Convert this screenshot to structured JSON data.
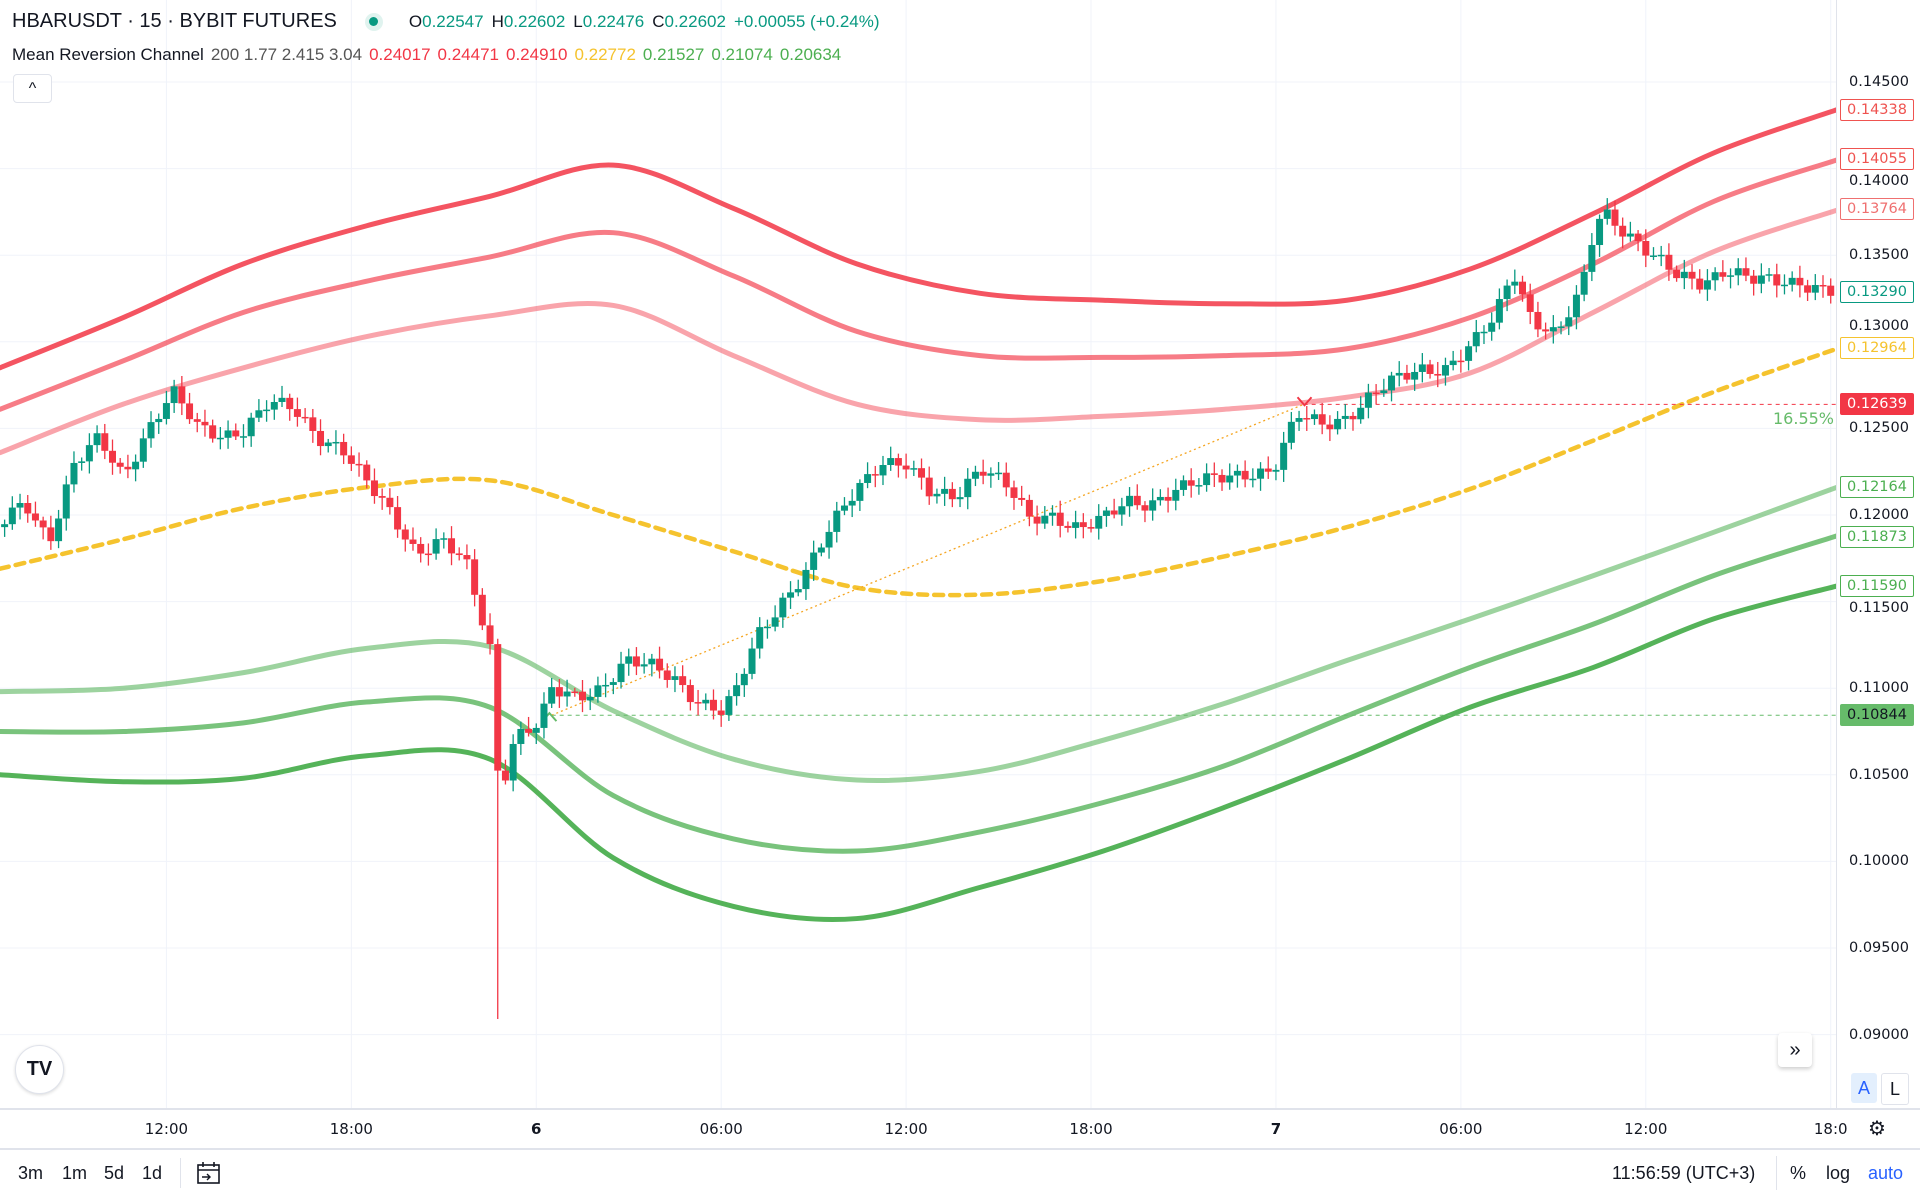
{
  "header": {
    "symbol": "HBARUSDT · 15 · BYBIT FUTURES",
    "ohlc": {
      "o_label": "O",
      "o": "0.22547",
      "h_label": "H",
      "h": "0.22602",
      "l_label": "L",
      "l": "0.22476",
      "c_label": "C",
      "c": "0.22602",
      "change": "+0.00055 (+0.24%)"
    },
    "indicator": {
      "name": "Mean Reversion Channel",
      "params": "200 1.77 2.415 3.04",
      "values": [
        {
          "v": "0.24017",
          "color": "#f23645"
        },
        {
          "v": "0.24471",
          "color": "#f23645"
        },
        {
          "v": "0.24910",
          "color": "#f23645"
        },
        {
          "v": "0.22772",
          "color": "#f5c32e"
        },
        {
          "v": "0.21527",
          "color": "#4caf50"
        },
        {
          "v": "0.21074",
          "color": "#4caf50"
        },
        {
          "v": "0.20634",
          "color": "#4caf50"
        }
      ]
    },
    "collapse_icon": "chevron-up-icon",
    "collapse_glyph": "^"
  },
  "price_axis": {
    "ticks": [
      "0.14500",
      "0.14000",
      "0.13500",
      "0.13000",
      "0.12500",
      "0.12000",
      "0.11500",
      "0.11000",
      "0.10500",
      "0.10000",
      "0.09500",
      "0.09000"
    ],
    "tick_values": [
      0.145,
      0.14,
      0.135,
      0.13,
      0.125,
      0.12,
      0.115,
      0.11,
      0.105,
      0.1,
      0.095,
      0.09
    ],
    "labels": [
      {
        "text": "0.14338",
        "value": 0.14338,
        "color": "#ef5350",
        "style": "outline"
      },
      {
        "text": "0.14055",
        "value": 0.14055,
        "color": "#ef5350",
        "style": "outline"
      },
      {
        "text": "0.13764",
        "value": 0.13764,
        "color": "#ef7070",
        "style": "outline"
      },
      {
        "text": "0.13290",
        "value": 0.1329,
        "color": "#089981",
        "style": "outline"
      },
      {
        "text": "0.12964",
        "value": 0.12964,
        "color": "#f5c32e",
        "style": "outline"
      },
      {
        "text": "0.12639",
        "value": 0.12639,
        "color": "#f23645",
        "style": "solid"
      },
      {
        "text": "0.12164",
        "value": 0.12164,
        "color": "#4caf50",
        "style": "outline"
      },
      {
        "text": "0.11873",
        "value": 0.11873,
        "color": "#4caf50",
        "style": "outline"
      },
      {
        "text": "0.11590",
        "value": 0.1159,
        "color": "#4caf50",
        "style": "outline"
      },
      {
        "text": "0.10844",
        "value": 0.10844,
        "color": "#66bb6a",
        "style": "solid"
      }
    ]
  },
  "time_axis": {
    "ticks": [
      {
        "label": "12:00",
        "hour": 12
      },
      {
        "label": "18:00",
        "hour": 18
      },
      {
        "label": "6",
        "hour": 24
      },
      {
        "label": "06:00",
        "hour": 30
      },
      {
        "label": "12:00",
        "hour": 36
      },
      {
        "label": "18:00",
        "hour": 42
      },
      {
        "label": "7",
        "hour": 48
      },
      {
        "label": "06:00",
        "hour": 54
      },
      {
        "label": "12:00",
        "hour": 60
      },
      {
        "label": "18:0",
        "hour": 66
      }
    ]
  },
  "annotation": {
    "percent": "16.55%"
  },
  "bottom_bar": {
    "ranges": [
      "3m",
      "1m",
      "5d",
      "1d"
    ],
    "clock": "11:56:59 (UTC+3)",
    "percent": "%",
    "log": "log",
    "auto": "auto"
  },
  "chart_controls": {
    "auto_scale": "A",
    "lock": "L",
    "logo": "TV"
  },
  "colors": {
    "up": "#089981",
    "down": "#f23645",
    "yellow": "#f5c32e"
  },
  "chart_data": {
    "type": "candlestick",
    "x_unit": "hours since day 5 00:00 (15-minute candles)",
    "closes": [
      [
        6.6,
        0.1193
      ],
      [
        7.4,
        0.1207
      ],
      [
        8.2,
        0.1186
      ],
      [
        9.0,
        0.1229
      ],
      [
        9.8,
        0.1243
      ],
      [
        10.6,
        0.1222
      ],
      [
        11.4,
        0.125
      ],
      [
        12.2,
        0.1271
      ],
      [
        13.0,
        0.125
      ],
      [
        13.8,
        0.1246
      ],
      [
        14.5,
        0.125
      ],
      [
        15.3,
        0.1264
      ],
      [
        16.1,
        0.1261
      ],
      [
        16.9,
        0.1246
      ],
      [
        17.7,
        0.1239
      ],
      [
        18.5,
        0.1218
      ],
      [
        19.3,
        0.12
      ],
      [
        20.1,
        0.1179
      ],
      [
        20.9,
        0.1186
      ],
      [
        21.7,
        0.1172
      ],
      [
        22.5,
        0.1123
      ],
      [
        22.8,
        0.1038
      ],
      [
        23.3,
        0.1073
      ],
      [
        24.1,
        0.108
      ],
      [
        24.5,
        0.1098
      ],
      [
        25.3,
        0.1094
      ],
      [
        26.1,
        0.1101
      ],
      [
        26.9,
        0.1116
      ],
      [
        27.7,
        0.1112
      ],
      [
        28.5,
        0.1105
      ],
      [
        29.2,
        0.1094
      ],
      [
        30.0,
        0.1087
      ],
      [
        30.4,
        0.1094
      ],
      [
        31.2,
        0.113
      ],
      [
        32.0,
        0.1151
      ],
      [
        32.8,
        0.1169
      ],
      [
        33.6,
        0.1193
      ],
      [
        34.4,
        0.1215
      ],
      [
        35.2,
        0.1232
      ],
      [
        36.0,
        0.1229
      ],
      [
        36.8,
        0.1211
      ],
      [
        37.6,
        0.1211
      ],
      [
        38.4,
        0.1229
      ],
      [
        39.2,
        0.1218
      ],
      [
        40.0,
        0.1197
      ],
      [
        40.8,
        0.12
      ],
      [
        41.6,
        0.1193
      ],
      [
        42.4,
        0.1197
      ],
      [
        43.2,
        0.1207
      ],
      [
        43.9,
        0.1207
      ],
      [
        44.7,
        0.1215
      ],
      [
        45.5,
        0.1218
      ],
      [
        46.3,
        0.1222
      ],
      [
        47.1,
        0.1225
      ],
      [
        47.9,
        0.1225
      ],
      [
        48.7,
        0.1257
      ],
      [
        49.5,
        0.1253
      ],
      [
        50.3,
        0.1257
      ],
      [
        51.1,
        0.1268
      ],
      [
        51.9,
        0.1278
      ],
      [
        52.7,
        0.1285
      ],
      [
        53.5,
        0.1285
      ],
      [
        54.3,
        0.1296
      ],
      [
        55.1,
        0.1314
      ],
      [
        55.7,
        0.1342
      ],
      [
        56.3,
        0.1314
      ],
      [
        57.1,
        0.1303
      ],
      [
        57.9,
        0.1328
      ],
      [
        58.3,
        0.1363
      ],
      [
        58.6,
        0.1377
      ],
      [
        59.4,
        0.1363
      ],
      [
        60.2,
        0.1349
      ],
      [
        61.0,
        0.1338
      ],
      [
        61.8,
        0.1335
      ],
      [
        62.6,
        0.1342
      ],
      [
        63.4,
        0.1335
      ],
      [
        64.2,
        0.1335
      ],
      [
        65.0,
        0.1335
      ],
      [
        66.0,
        0.1329
      ]
    ],
    "spike": {
      "hour": 22.75,
      "low": 0.0909
    },
    "channel_x": [
      6.6,
      10.6,
      14.5,
      18.5,
      22.5,
      26.5,
      30.4,
      34.4,
      38.4,
      42.4,
      46.3,
      50.3,
      54.3,
      58.3,
      62.2,
      66.2
    ],
    "channels": [
      {
        "name": "upper 3",
        "color": "#f23645",
        "opacity": 0.85,
        "values": [
          0.1285,
          0.1314,
          0.1345,
          0.1367,
          0.1384,
          0.1402,
          0.1377,
          0.1345,
          0.1328,
          0.1324,
          0.1322,
          0.1324,
          0.1342,
          0.1374,
          0.1409,
          0.1434
        ]
      },
      {
        "name": "upper 2",
        "color": "#f23645",
        "opacity": 0.65,
        "values": [
          0.1261,
          0.1289,
          0.1317,
          0.1335,
          0.1349,
          0.1363,
          0.1338,
          0.1306,
          0.1292,
          0.1291,
          0.1292,
          0.1296,
          0.1314,
          0.1345,
          0.1381,
          0.1405
        ]
      },
      {
        "name": "upper 1",
        "color": "#f23645",
        "opacity": 0.45,
        "values": [
          0.1236,
          0.1264,
          0.1285,
          0.1303,
          0.1315,
          0.1321,
          0.1292,
          0.1264,
          0.1255,
          0.1257,
          0.1261,
          0.1268,
          0.1282,
          0.1317,
          0.1352,
          0.1376
        ]
      },
      {
        "name": "mean",
        "color": "#f5c32e",
        "opacity": 1,
        "dashed": true,
        "values": [
          0.1169,
          0.1186,
          0.1204,
          0.1216,
          0.122,
          0.12,
          0.1179,
          0.1158,
          0.1154,
          0.1162,
          0.1176,
          0.1193,
          0.1215,
          0.1243,
          0.1271,
          0.1296
        ]
      },
      {
        "name": "lower 1",
        "color": "#4caf50",
        "opacity": 0.55,
        "values": [
          0.1098,
          0.11,
          0.1109,
          0.1123,
          0.1124,
          0.1087,
          0.1059,
          0.1047,
          0.1052,
          0.107,
          0.1091,
          0.1116,
          0.114,
          0.1165,
          0.119,
          0.1216
        ]
      },
      {
        "name": "lower 2",
        "color": "#4caf50",
        "opacity": 0.75,
        "values": [
          0.1075,
          0.1075,
          0.108,
          0.1092,
          0.1089,
          0.1038,
          0.1013,
          0.1006,
          0.1017,
          0.1034,
          0.1055,
          0.1084,
          0.1112,
          0.1137,
          0.1165,
          0.1188
        ]
      },
      {
        "name": "lower 3",
        "color": "#4caf50",
        "opacity": 0.95,
        "values": [
          0.105,
          0.1046,
          0.1048,
          0.1061,
          0.1059,
          0.1002,
          0.0974,
          0.0967,
          0.0985,
          0.1006,
          0.1031,
          0.1059,
          0.1089,
          0.1112,
          0.114,
          0.1159
        ]
      }
    ],
    "hlines": [
      {
        "price": 0.12639,
        "from_hour": 48.9,
        "color": "#f23645"
      },
      {
        "price": 0.10844,
        "from_hour": 24.5,
        "color": "#66bb6a"
      }
    ],
    "trend_line": {
      "from": [
        24.5,
        0.10844
      ],
      "to": [
        48.9,
        0.12639
      ],
      "color": "#f5a623"
    },
    "ylim": [
      0.0865,
      0.1476
    ]
  }
}
